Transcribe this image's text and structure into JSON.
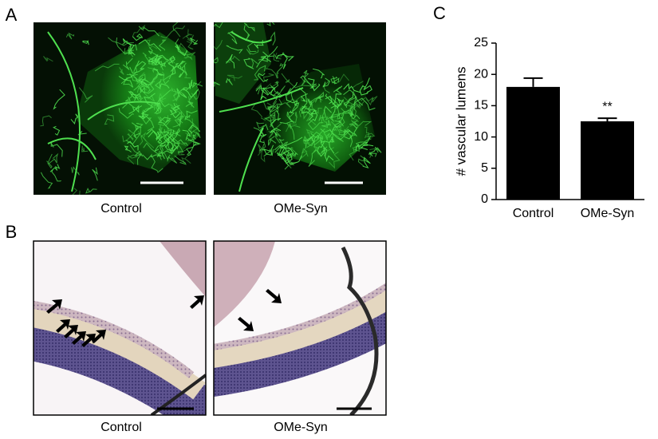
{
  "panels": {
    "a": {
      "label": "A",
      "captions": [
        "Control",
        "OMe-Syn"
      ]
    },
    "b": {
      "label": "B",
      "captions": [
        "Control",
        "OMe-Syn"
      ]
    },
    "c": {
      "label": "C"
    }
  },
  "chart_data": {
    "type": "bar",
    "y_label": "# vascular lumens",
    "categories": [
      "Control",
      "OMe-Syn"
    ],
    "values": [
      18,
      12.5
    ],
    "errors": [
      1.4,
      0.5
    ],
    "annotations": [
      null,
      "**"
    ],
    "color": "#000000",
    "ylim": [
      0,
      25
    ],
    "yticks": [
      0,
      5,
      10,
      15,
      20,
      25
    ],
    "grid": false
  }
}
